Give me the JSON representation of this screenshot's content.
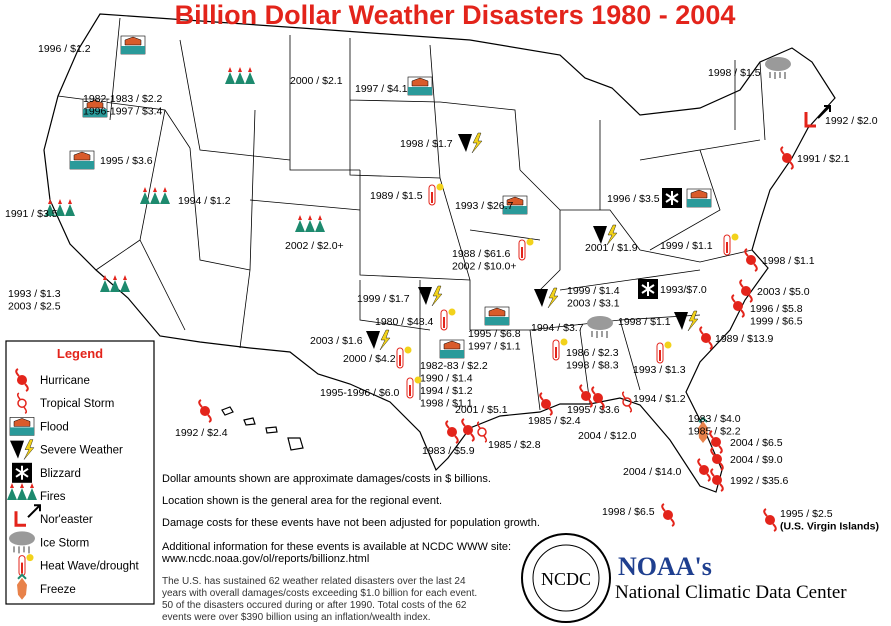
{
  "title": "Billion Dollar Weather Disasters 1980 - 2004",
  "legend": {
    "title": "Legend",
    "items": [
      "Hurricane",
      "Tropical Storm",
      "Flood",
      "Severe Weather",
      "Blizzard",
      "Fires",
      "Nor'easter",
      "Ice Storm",
      "Heat Wave/drought",
      "Freeze"
    ]
  },
  "events": [
    {
      "lines": [
        "1996 / $1.2"
      ]
    },
    {
      "lines": [
        "1982-1983 / $2.2",
        "1996-1997 / $3.4"
      ]
    },
    {
      "lines": [
        "2000 / $2.1"
      ]
    },
    {
      "lines": [
        "1997 / $4.1"
      ]
    },
    {
      "lines": [
        "1998 / $1.5"
      ]
    },
    {
      "lines": [
        "1992 / $2.0"
      ]
    },
    {
      "lines": [
        "1991 / $2.1"
      ]
    },
    {
      "lines": [
        "1998 / $1.7"
      ]
    },
    {
      "lines": [
        "1995 / $3.6"
      ]
    },
    {
      "lines": [
        "1989 / $1.5"
      ]
    },
    {
      "lines": [
        "1993 / $26.7"
      ]
    },
    {
      "lines": [
        "1996 / $3.5"
      ]
    },
    {
      "lines": [
        "1991 / $3.5"
      ]
    },
    {
      "lines": [
        "1994 / $1.2"
      ]
    },
    {
      "lines": [
        "2002 / $2.0+"
      ]
    },
    {
      "lines": [
        "2001 / $1.9"
      ]
    },
    {
      "lines": [
        "1999 / $1.1"
      ]
    },
    {
      "lines": [
        "1988 /  $61.6",
        "2002 /  $10.0+"
      ]
    },
    {
      "lines": [
        "1998 / $1.1"
      ]
    },
    {
      "lines": [
        "1993 / $1.3",
        "2003 / $2.5"
      ]
    },
    {
      "lines": [
        "1999 / $1.7"
      ]
    },
    {
      "lines": [
        "1999 / $1.4",
        "2003 / $3.1"
      ]
    },
    {
      "lines": [
        "1993/$7.0"
      ]
    },
    {
      "lines": [
        "2003 / $5.0"
      ]
    },
    {
      "lines": [
        "1980 / $48.4"
      ]
    },
    {
      "lines": [
        "1995 / $6.8",
        "1997 / $1.1"
      ]
    },
    {
      "lines": [
        "1994 / $3.7"
      ]
    },
    {
      "lines": [
        "1998 / $1.1"
      ]
    },
    {
      "lines": [
        "1996 / $5.8",
        "1999 / $6.5"
      ]
    },
    {
      "lines": [
        "2003 / $1.6"
      ]
    },
    {
      "lines": [
        "1986 / $2.3",
        "1998 / $8.3"
      ]
    },
    {
      "lines": [
        "1989 / $13.9"
      ]
    },
    {
      "lines": [
        "2000 / $4.2"
      ]
    },
    {
      "lines": [
        "1982-83 / $2.2",
        "1990 / $1.4",
        "1994 / $1.2",
        "1998 / $1.1"
      ]
    },
    {
      "lines": [
        "1993 / $1.3"
      ]
    },
    {
      "lines": [
        "1995-1996 / $6.0"
      ]
    },
    {
      "lines": [
        "1994 / $1.2"
      ]
    },
    {
      "lines": [
        "1995 / $3.6"
      ]
    },
    {
      "lines": [
        "2001 / $5.1"
      ]
    },
    {
      "lines": [
        "1985 / $2.4"
      ]
    },
    {
      "lines": [
        "1983 / $4.0",
        "1985 / $2.2"
      ]
    },
    {
      "lines": [
        "2004 / $12.0"
      ]
    },
    {
      "lines": [
        "1992 / $2.4"
      ]
    },
    {
      "lines": [
        "1985 / $2.8"
      ]
    },
    {
      "lines": [
        "2004 / $6.5"
      ]
    },
    {
      "lines": [
        "1983 / $5.9"
      ]
    },
    {
      "lines": [
        "2004 / $9.0"
      ]
    },
    {
      "lines": [
        "2004 / $14.0"
      ]
    },
    {
      "lines": [
        "1992 / $35.6"
      ]
    },
    {
      "lines": [
        "1998 / $6.5"
      ]
    },
    {
      "lines": [
        "1995 / $2.5",
        "(U.S. Virgin Islands)"
      ]
    }
  ],
  "notes": [
    "Dollar amounts shown are approximate damages/costs in $ billions.",
    "Location shown is the general area for the regional event.",
    "Damage costs for these events have not been adjusted for population growth."
  ],
  "info": [
    "Additional information for these events is available at NCDC WWW site:",
    "www.ncdc.noaa.gov/ol/reports/billionz.html"
  ],
  "summary": [
    "The U.S. has sustained 62 weather related disasters over the last 24",
    "years with overall damages/costs exceeding $1.0 billion for each event.",
    "50 of the disasters occured during or after 1990. Total costs of the 62",
    "events were over $390 billion using an inflation/wealth index."
  ],
  "logo": {
    "seal": "NCDC",
    "name": "NOAA's",
    "center": "National Climatic Data Center"
  }
}
